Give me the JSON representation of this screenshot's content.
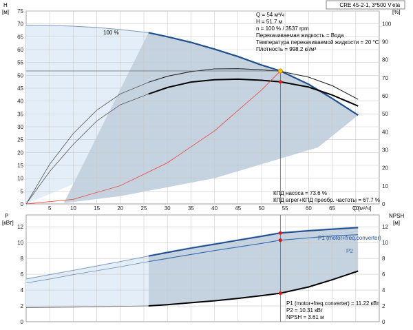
{
  "title": "CRE 45-2-1, 3*500 V",
  "chart_data": [
    {
      "type": "line",
      "panel": "top",
      "x_axis_label": "Q [м³/ч]",
      "x_ticks": [
        0,
        5,
        10,
        15,
        20,
        25,
        30,
        35,
        40,
        45,
        50,
        55,
        60,
        65,
        70
      ],
      "xlim": [
        0,
        75
      ],
      "left_axis_label_1": "H",
      "left_axis_label_2": "[м]",
      "left_ticks": [
        0,
        5,
        10,
        15,
        20,
        25,
        30,
        35,
        40,
        45,
        50,
        55,
        60,
        65,
        70,
        75
      ],
      "ylim_left": [
        0,
        75
      ],
      "right_axis_label_1": "eta",
      "right_axis_label_2": "[%]",
      "right_ticks": [
        0,
        10,
        20,
        30,
        40,
        50,
        60,
        70,
        80,
        90,
        100
      ],
      "ylim_right": [
        0,
        107
      ],
      "speed_label": "100 %",
      "info_lines": [
        "Q = 54 м³/ч",
        "H = 51.7 м",
        "n = 100 % / 3537 rpm",
        "Перекачиваемая жидкость = Вода",
        "Температура перекачиваемой жидкости = 20 °C",
        "Плотность = 998.2 кг/м³"
      ],
      "eff_labels": [
        "КПД насоса = 73.6 %",
        "КПД агрег+КПД преобр. частоты = 67.7 %"
      ],
      "duty_point": {
        "x": 54,
        "y": 51.7
      },
      "head_curve": {
        "x": [
          0,
          5,
          10,
          15,
          20,
          26,
          30,
          35,
          40,
          45,
          50,
          54,
          60,
          65,
          70.5
        ],
        "y": [
          69.5,
          69.4,
          69.1,
          68.6,
          67.8,
          66.6,
          65.0,
          62.8,
          60.2,
          57.3,
          54.0,
          51.7,
          46.5,
          41.0,
          34.5
        ]
      },
      "pump_eff_curve": {
        "x": [
          0,
          5,
          10,
          15,
          20,
          26,
          30,
          35,
          40,
          45,
          50,
          54,
          60,
          65,
          70.5
        ],
        "y": [
          0,
          22,
          39,
          52,
          61,
          67.5,
          70.8,
          73.4,
          74.9,
          75.0,
          74.4,
          73.6,
          70.3,
          65.6,
          58.0
        ]
      },
      "total_eff_curve": {
        "x": [
          0,
          5,
          10,
          15,
          20,
          26,
          30,
          35,
          40,
          45,
          50,
          54,
          60,
          65,
          70.5
        ],
        "y": [
          0,
          18,
          33,
          46,
          55,
          61.0,
          64.6,
          67.6,
          68.9,
          69.2,
          68.6,
          67.7,
          64.8,
          60.4,
          54.3
        ]
      },
      "system_curve": {
        "x": [
          0,
          10,
          20,
          30,
          40,
          50,
          54
        ],
        "y": [
          0,
          1.8,
          7.1,
          16.0,
          28.4,
          44.3,
          51.7
        ]
      }
    },
    {
      "type": "line",
      "panel": "bottom",
      "left_axis_label_1": "P",
      "left_axis_label_2": "[кВт]",
      "left_ticks": [
        0,
        2,
        4,
        6,
        8,
        10,
        12
      ],
      "ylim_left": [
        0,
        13.5
      ],
      "right_axis_label_1": "NPSH",
      "right_axis_label_2": "[м]",
      "right_ticks": [
        0,
        2,
        4,
        6,
        8,
        10,
        12
      ],
      "ylim_right": [
        0,
        13.5
      ],
      "series_labels": [
        "P1 (motor+freq.converter)",
        "P2"
      ],
      "info_lines": [
        "P1 (motor+freq.converter) = 11.22 кВт",
        "P2 = 10.31 кВт",
        "NPSH = 3.61 м"
      ],
      "p1_curve": {
        "x": [
          0,
          5,
          10,
          15,
          20,
          26,
          30,
          35,
          40,
          45,
          50,
          54,
          60,
          65,
          70.5
        ],
        "y": [
          5.4,
          5.95,
          6.5,
          7.05,
          7.6,
          8.3,
          8.75,
          9.3,
          9.8,
          10.3,
          10.8,
          11.22,
          11.5,
          11.7,
          11.9
        ]
      },
      "p2_curve": {
        "x": [
          0,
          5,
          10,
          15,
          20,
          26,
          30,
          35,
          40,
          45,
          50,
          54,
          60,
          65,
          70.5
        ],
        "y": [
          4.9,
          5.4,
          5.95,
          6.45,
          6.95,
          7.6,
          8.0,
          8.5,
          9.0,
          9.45,
          9.9,
          10.31,
          10.6,
          10.85,
          11.0
        ]
      },
      "npsh_curve": {
        "x": [
          0,
          10,
          20,
          26,
          30,
          35,
          40,
          45,
          50,
          54,
          60,
          65,
          70.5
        ],
        "y": [
          1.8,
          1.85,
          1.95,
          2.0,
          2.15,
          2.4,
          2.65,
          2.95,
          3.3,
          3.61,
          4.4,
          5.3,
          6.4
        ]
      }
    }
  ]
}
